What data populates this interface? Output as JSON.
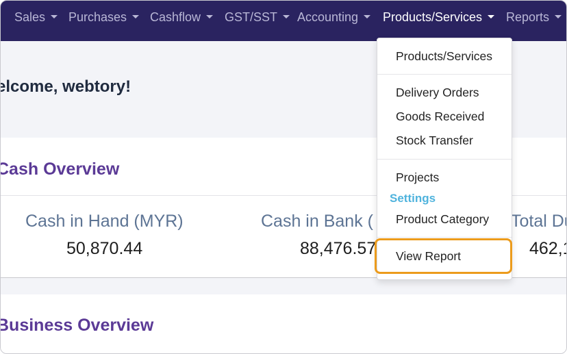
{
  "nav": {
    "items": [
      {
        "label": "Sales"
      },
      {
        "label": "Purchases"
      },
      {
        "label": "Cashflow"
      },
      {
        "label": "GST/SST"
      },
      {
        "label": "Accounting"
      },
      {
        "label": "Products/Services"
      },
      {
        "label": "Reports"
      }
    ]
  },
  "welcome": {
    "text": "elcome, webtory!"
  },
  "cash_overview": {
    "title": "Cash Overview",
    "stats": [
      {
        "label": "Cash in Hand (MYR)",
        "value": "50,870.44"
      },
      {
        "label": "Cash in Bank (",
        "value": "88,476.57"
      },
      {
        "label": "Total Du",
        "value": "462,1"
      }
    ]
  },
  "business_overview": {
    "title": "Business Overview"
  },
  "dropdown": {
    "products_services": "Products/Services",
    "delivery_orders": "Delivery Orders",
    "goods_received": "Goods Received",
    "stock_transfer": "Stock Transfer",
    "projects": "Projects",
    "settings_header": "Settings",
    "product_category": "Product Category",
    "view_report": "View Report"
  },
  "colors": {
    "navbar": "#2a2360",
    "accent_purple": "#5b3a96",
    "settings_blue": "#4fb3dd",
    "highlight_orange": "#ec9b1c"
  }
}
